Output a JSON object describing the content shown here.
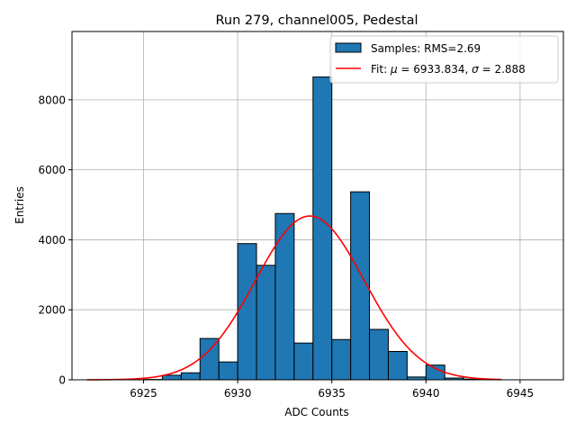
{
  "chart_data": {
    "type": "bar",
    "title": "Run 279, channel005, Pedestal",
    "xlabel": "ADC Counts",
    "ylabel": "Entries",
    "xlim": [
      6921.2,
      6947.3
    ],
    "ylim": [
      0,
      9950
    ],
    "grid": true,
    "xticks": [
      6925,
      6930,
      6935,
      6940,
      6945
    ],
    "yticks": [
      0,
      2000,
      4000,
      6000,
      8000
    ],
    "bin_width": 1,
    "bins": [
      6925,
      6926,
      6927,
      6928,
      6929,
      6930,
      6931,
      6932,
      6933,
      6934,
      6935,
      6936,
      6937,
      6938,
      6939,
      6940,
      6941,
      6942,
      6943
    ],
    "values": [
      10,
      130,
      200,
      1180,
      510,
      3890,
      3270,
      4750,
      1050,
      8650,
      1150,
      5370,
      1440,
      810,
      80,
      420,
      50,
      20,
      10
    ],
    "series": [
      {
        "name": "Samples: RMS=2.69",
        "kind": "histogram",
        "color": "#1f77b4"
      },
      {
        "name": "Fit",
        "kind": "gaussian",
        "color": "#ff0000",
        "mu": 6933.834,
        "sigma": 2.888,
        "amplitude": 4680,
        "x_range": [
          6922,
          6944
        ]
      }
    ],
    "legend": {
      "position": "top-right",
      "hist_label": "Samples: RMS=2.69",
      "fit_prefix": "Fit: ",
      "mu_symbol": "μ",
      "mu_text": " = 6933.834, ",
      "sigma_symbol": "σ",
      "sigma_text": " = 2.888"
    }
  }
}
